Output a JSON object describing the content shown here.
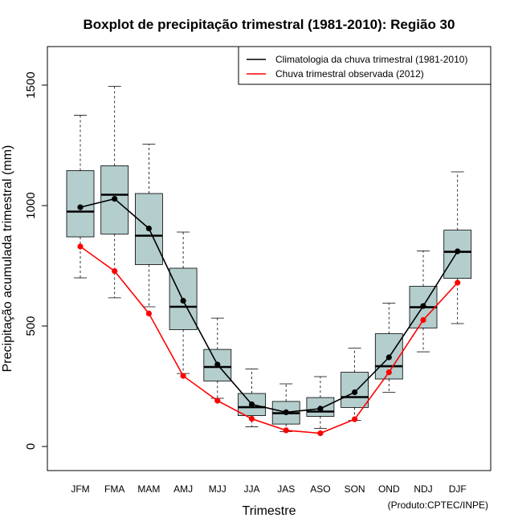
{
  "chart_data": {
    "type": "boxplot",
    "title": "Boxplot de precipitação trimestral (1981-2010): Região 30",
    "xlabel": "Trimestre",
    "ylabel": "Precipitação acumulada trimestral (mm)",
    "ylim": [
      -100,
      1660
    ],
    "yticks": [
      0,
      500,
      1000,
      1500
    ],
    "categories": [
      "JFM",
      "FMA",
      "MAM",
      "AMJ",
      "MJJ",
      "JJA",
      "JAS",
      "ASO",
      "SON",
      "OND",
      "NDJ",
      "DJF"
    ],
    "boxes": [
      {
        "whisker_low": 700,
        "q1": 870,
        "median": 975,
        "q3": 1145,
        "whisker_high": 1375
      },
      {
        "whisker_low": 617,
        "q1": 882,
        "median": 1045,
        "q3": 1165,
        "whisker_high": 1495
      },
      {
        "whisker_low": 580,
        "q1": 755,
        "median": 875,
        "q3": 1050,
        "whisker_high": 1255
      },
      {
        "whisker_low": 303,
        "q1": 485,
        "median": 580,
        "q3": 740,
        "whisker_high": 890
      },
      {
        "whisker_low": 200,
        "q1": 272,
        "median": 330,
        "q3": 403,
        "whisker_high": 533
      },
      {
        "whisker_low": 82,
        "q1": 128,
        "median": 163,
        "q3": 220,
        "whisker_high": 322
      },
      {
        "whisker_low": 62,
        "q1": 93,
        "median": 138,
        "q3": 187,
        "whisker_high": 260
      },
      {
        "whisker_low": 75,
        "q1": 125,
        "median": 145,
        "q3": 203,
        "whisker_high": 290
      },
      {
        "whisker_low": 108,
        "q1": 162,
        "median": 205,
        "q3": 308,
        "whisker_high": 408
      },
      {
        "whisker_low": 225,
        "q1": 280,
        "median": 333,
        "q3": 468,
        "whisker_high": 595
      },
      {
        "whisker_low": 393,
        "q1": 492,
        "median": 578,
        "q3": 665,
        "whisker_high": 812
      },
      {
        "whisker_low": 510,
        "q1": 698,
        "median": 808,
        "q3": 898,
        "whisker_high": 1140
      }
    ],
    "series": [
      {
        "name": "Climatologia da chuva trimestral (1981-2010)",
        "color": "#000000",
        "values": [
          993,
          1028,
          905,
          605,
          340,
          175,
          142,
          157,
          225,
          370,
          583,
          810
        ]
      },
      {
        "name": "Chuva trimestral observada (2012)",
        "color": "#ff0000",
        "values": [
          830,
          728,
          552,
          293,
          190,
          115,
          67,
          55,
          113,
          308,
          525,
          680
        ]
      }
    ],
    "legend": "top-right",
    "box_fill": "#b4cdcd"
  },
  "footer": {
    "credit": "(Produto:CPTEC/INPE)"
  }
}
